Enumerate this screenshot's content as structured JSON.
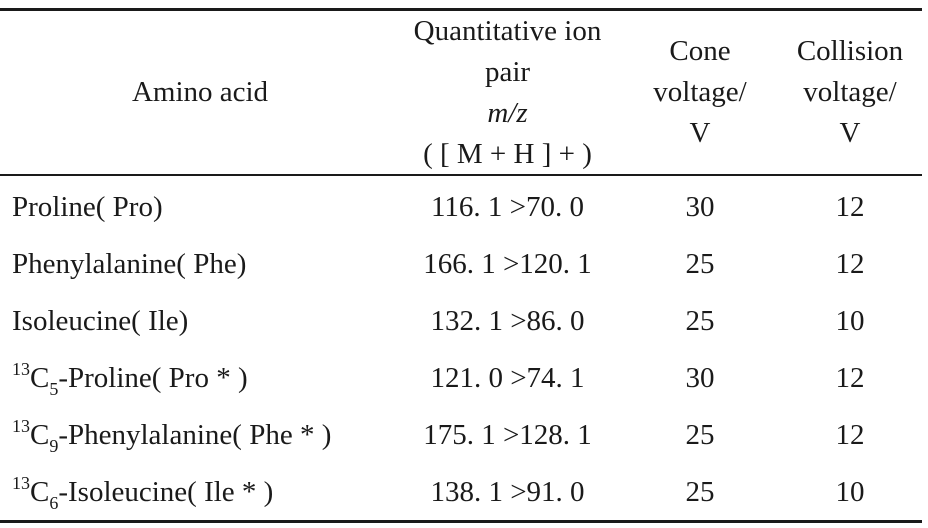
{
  "table": {
    "headers": {
      "amino_acid": "Amino acid",
      "ion_pair_line1": "Quantitative ion",
      "ion_pair_line2_prefix": "pair",
      "ion_pair_line2_mz": "m/z",
      "ion_pair_line3": "( [ M + H ] + )",
      "cone_line1": "Cone",
      "cone_line2": "voltage/",
      "cone_line3": "V",
      "collision_line1": "Collision",
      "collision_line2": "voltage/",
      "collision_line3": "V"
    },
    "rows": [
      {
        "iso_mass": "",
        "iso_element": "",
        "iso_count": "",
        "name": "Proline( Pro)",
        "ion_pair": "116. 1 >70. 0",
        "cone": "30",
        "collision": "12"
      },
      {
        "iso_mass": "",
        "iso_element": "",
        "iso_count": "",
        "name": "Phenylalanine( Phe)",
        "ion_pair": "166. 1 >120. 1",
        "cone": "25",
        "collision": "12"
      },
      {
        "iso_mass": "",
        "iso_element": "",
        "iso_count": "",
        "name": "Isoleucine( Ile)",
        "ion_pair": "132. 1 >86. 0",
        "cone": "25",
        "collision": "10"
      },
      {
        "iso_mass": "13",
        "iso_element": "C",
        "iso_count": "5",
        "name": "-Proline( Pro * )",
        "ion_pair": "121. 0 >74. 1",
        "cone": "30",
        "collision": "12"
      },
      {
        "iso_mass": "13",
        "iso_element": "C",
        "iso_count": "9",
        "name": "-Phenylalanine( Phe * )",
        "ion_pair": "175. 1 >128. 1",
        "cone": "25",
        "collision": "12"
      },
      {
        "iso_mass": "13",
        "iso_element": "C",
        "iso_count": "6",
        "name": "-Isoleucine( Ile * )",
        "ion_pair": "138. 1 >91. 0",
        "cone": "25",
        "collision": "10"
      }
    ]
  }
}
